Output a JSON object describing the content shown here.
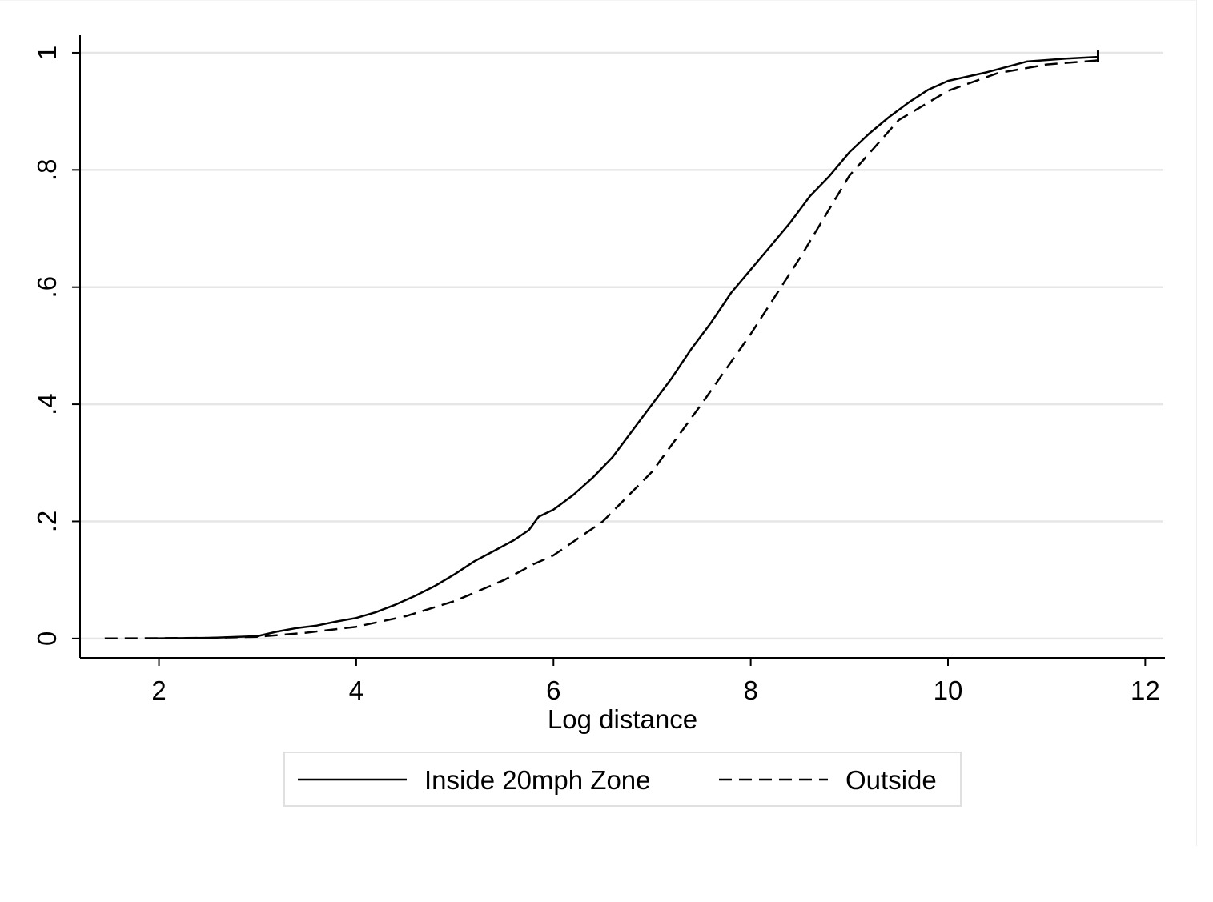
{
  "chart_data": {
    "type": "line",
    "title": "",
    "xlabel": "Log distance",
    "ylabel": "",
    "xlim": [
      1.2,
      12.2
    ],
    "ylim": [
      -0.033,
      1.03
    ],
    "xticks": [
      2,
      4,
      6,
      8,
      10,
      12
    ],
    "xtick_labels": [
      "2",
      "4",
      "6",
      "8",
      "10",
      "12"
    ],
    "yticks": [
      0,
      0.2,
      0.4,
      0.6,
      0.8,
      1
    ],
    "ytick_labels": [
      "0",
      ".2",
      ".4",
      ".6",
      ".8",
      "1"
    ],
    "grid": "horizontal",
    "legend_position": "bottom",
    "series": [
      {
        "name": "Inside 20mph Zone",
        "style": "solid",
        "color": "#000000",
        "x": [
          1.9,
          2.5,
          3.0,
          3.2,
          3.4,
          3.6,
          3.8,
          4.0,
          4.2,
          4.4,
          4.6,
          4.8,
          5.0,
          5.2,
          5.4,
          5.6,
          5.75,
          5.85,
          6.0,
          6.2,
          6.4,
          6.6,
          6.8,
          7.0,
          7.2,
          7.4,
          7.6,
          7.8,
          8.0,
          8.2,
          8.4,
          8.6,
          8.8,
          9.0,
          9.2,
          9.4,
          9.6,
          9.8,
          10.0,
          10.4,
          10.8,
          11.2,
          11.52
        ],
        "y": [
          0.0,
          0.001,
          0.004,
          0.012,
          0.018,
          0.022,
          0.029,
          0.035,
          0.045,
          0.058,
          0.073,
          0.09,
          0.11,
          0.132,
          0.15,
          0.168,
          0.185,
          0.208,
          0.22,
          0.245,
          0.275,
          0.31,
          0.355,
          0.4,
          0.445,
          0.495,
          0.54,
          0.59,
          0.63,
          0.67,
          0.71,
          0.755,
          0.79,
          0.83,
          0.862,
          0.89,
          0.915,
          0.937,
          0.952,
          0.967,
          0.985,
          0.99,
          0.993
        ]
      },
      {
        "name": "Outside",
        "style": "dashed",
        "color": "#000000",
        "x": [
          1.45,
          2.5,
          3.0,
          3.5,
          4.0,
          4.5,
          5.0,
          5.5,
          5.8,
          6.0,
          6.5,
          7.0,
          7.5,
          8.0,
          8.5,
          9.0,
          9.5,
          10.0,
          10.5,
          11.0,
          11.52
        ],
        "y": [
          0.0,
          0.001,
          0.003,
          0.01,
          0.02,
          0.038,
          0.064,
          0.1,
          0.127,
          0.142,
          0.2,
          0.285,
          0.4,
          0.52,
          0.65,
          0.79,
          0.885,
          0.935,
          0.965,
          0.98,
          0.987
        ]
      }
    ]
  }
}
